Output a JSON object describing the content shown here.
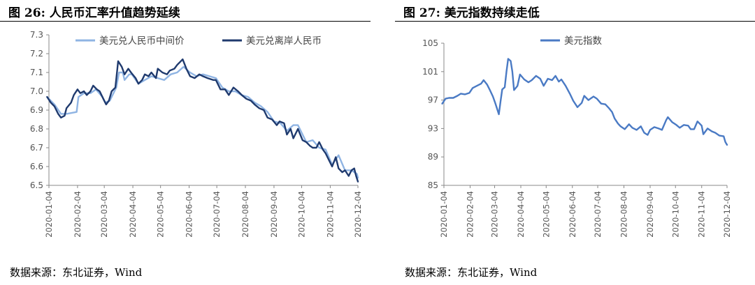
{
  "figures": [
    {
      "title": "图 26: 人民币汇率升值趋势延续",
      "source": "数据来源：东北证券，Wind"
    },
    {
      "title": "图 27: 美元指数持续走低",
      "source": "数据来源：东北证券，Wind"
    }
  ],
  "chart_data": [
    {
      "type": "line",
      "xlabel": "",
      "ylabel": "",
      "ylim": [
        6.5,
        7.3
      ],
      "yticks": [
        6.5,
        6.6,
        6.7,
        6.8,
        6.9,
        7.0,
        7.1,
        7.2,
        7.3
      ],
      "xlim": [
        "2020-01-04",
        "2020-12-04"
      ],
      "xticks": [
        "2020-01-04",
        "2020-02-04",
        "2020-03-04",
        "2020-04-04",
        "2020-05-04",
        "2020-06-04",
        "2020-07-04",
        "2020-08-04",
        "2020-09-04",
        "2020-10-04",
        "2020-11-04",
        "2020-12-04"
      ],
      "grid": false,
      "legend": "top",
      "series": [
        {
          "name": "美元兑人民币中间价",
          "color": "#8fb4e3",
          "points": [
            [
              "2020-01-02",
              6.97
            ],
            [
              "2020-01-10",
              6.93
            ],
            [
              "2020-01-17",
              6.88
            ],
            [
              "2020-01-23",
              6.88
            ],
            [
              "2020-02-03",
              6.89
            ],
            [
              "2020-02-05",
              6.97
            ],
            [
              "2020-02-11",
              6.99
            ],
            [
              "2020-02-18",
              6.99
            ],
            [
              "2020-02-24",
              7.01
            ],
            [
              "2020-03-02",
              6.97
            ],
            [
              "2020-03-05",
              6.94
            ],
            [
              "2020-03-10",
              6.95
            ],
            [
              "2020-03-17",
              7.02
            ],
            [
              "2020-03-20",
              7.1
            ],
            [
              "2020-03-24",
              7.1
            ],
            [
              "2020-03-26",
              7.06
            ],
            [
              "2020-03-31",
              7.09
            ],
            [
              "2020-04-03",
              7.09
            ],
            [
              "2020-04-10",
              7.04
            ],
            [
              "2020-04-17",
              7.06
            ],
            [
              "2020-04-24",
              7.08
            ],
            [
              "2020-05-01",
              7.07
            ],
            [
              "2020-05-08",
              7.06
            ],
            [
              "2020-05-15",
              7.09
            ],
            [
              "2020-05-22",
              7.1
            ],
            [
              "2020-05-29",
              7.13
            ],
            [
              "2020-06-05",
              7.1
            ],
            [
              "2020-06-12",
              7.08
            ],
            [
              "2020-06-19",
              7.09
            ],
            [
              "2020-06-26",
              7.08
            ],
            [
              "2020-07-03",
              7.07
            ],
            [
              "2020-07-10",
              7.02
            ],
            [
              "2020-07-17",
              7.0
            ],
            [
              "2020-07-24",
              7.0
            ],
            [
              "2020-07-31",
              6.98
            ],
            [
              "2020-08-07",
              6.97
            ],
            [
              "2020-08-14",
              6.94
            ],
            [
              "2020-08-21",
              6.92
            ],
            [
              "2020-08-28",
              6.89
            ],
            [
              "2020-09-04",
              6.84
            ],
            [
              "2020-09-11",
              6.83
            ],
            [
              "2020-09-18",
              6.79
            ],
            [
              "2020-09-25",
              6.82
            ],
            [
              "2020-09-30",
              6.82
            ],
            [
              "2020-10-09",
              6.73
            ],
            [
              "2020-10-16",
              6.74
            ],
            [
              "2020-10-23",
              6.7
            ],
            [
              "2020-10-30",
              6.69
            ],
            [
              "2020-11-06",
              6.61
            ],
            [
              "2020-11-13",
              6.66
            ],
            [
              "2020-11-20",
              6.58
            ],
            [
              "2020-11-27",
              6.58
            ],
            [
              "2020-12-03",
              6.56
            ],
            [
              "2020-12-04",
              6.54
            ]
          ]
        },
        {
          "name": "美元兑离岸人民币",
          "color": "#1f3a6e",
          "points": [
            [
              "2020-01-02",
              6.97
            ],
            [
              "2020-01-06",
              6.94
            ],
            [
              "2020-01-10",
              6.92
            ],
            [
              "2020-01-14",
              6.88
            ],
            [
              "2020-01-17",
              6.86
            ],
            [
              "2020-01-21",
              6.87
            ],
            [
              "2020-01-23",
              6.91
            ],
            [
              "2020-01-28",
              6.94
            ],
            [
              "2020-01-31",
              6.98
            ],
            [
              "2020-02-04",
              7.01
            ],
            [
              "2020-02-07",
              6.99
            ],
            [
              "2020-02-11",
              7.0
            ],
            [
              "2020-02-14",
              6.98
            ],
            [
              "2020-02-18",
              7.0
            ],
            [
              "2020-02-21",
              7.03
            ],
            [
              "2020-02-25",
              7.01
            ],
            [
              "2020-02-28",
              7.0
            ],
            [
              "2020-03-03",
              6.96
            ],
            [
              "2020-03-06",
              6.93
            ],
            [
              "2020-03-09",
              6.95
            ],
            [
              "2020-03-12",
              7.0
            ],
            [
              "2020-03-16",
              7.02
            ],
            [
              "2020-03-18",
              7.11
            ],
            [
              "2020-03-19",
              7.16
            ],
            [
              "2020-03-23",
              7.13
            ],
            [
              "2020-03-26",
              7.09
            ],
            [
              "2020-03-30",
              7.12
            ],
            [
              "2020-04-02",
              7.1
            ],
            [
              "2020-04-07",
              7.07
            ],
            [
              "2020-04-10",
              7.04
            ],
            [
              "2020-04-14",
              7.06
            ],
            [
              "2020-04-17",
              7.09
            ],
            [
              "2020-04-21",
              7.08
            ],
            [
              "2020-04-24",
              7.1
            ],
            [
              "2020-04-29",
              7.07
            ],
            [
              "2020-05-01",
              7.12
            ],
            [
              "2020-05-06",
              7.1
            ],
            [
              "2020-05-11",
              7.09
            ],
            [
              "2020-05-14",
              7.11
            ],
            [
              "2020-05-19",
              7.12
            ],
            [
              "2020-05-22",
              7.14
            ],
            [
              "2020-05-26",
              7.16
            ],
            [
              "2020-05-28",
              7.17
            ],
            [
              "2020-06-01",
              7.12
            ],
            [
              "2020-06-05",
              7.08
            ],
            [
              "2020-06-10",
              7.07
            ],
            [
              "2020-06-15",
              7.09
            ],
            [
              "2020-06-19",
              7.08
            ],
            [
              "2020-06-24",
              7.07
            ],
            [
              "2020-06-30",
              7.06
            ],
            [
              "2020-07-03",
              7.06
            ],
            [
              "2020-07-08",
              7.01
            ],
            [
              "2020-07-13",
              7.01
            ],
            [
              "2020-07-17",
              6.98
            ],
            [
              "2020-07-22",
              7.02
            ],
            [
              "2020-07-27",
              7.0
            ],
            [
              "2020-07-31",
              6.98
            ],
            [
              "2020-08-05",
              6.96
            ],
            [
              "2020-08-10",
              6.95
            ],
            [
              "2020-08-14",
              6.93
            ],
            [
              "2020-08-19",
              6.91
            ],
            [
              "2020-08-24",
              6.9
            ],
            [
              "2020-08-28",
              6.86
            ],
            [
              "2020-09-02",
              6.85
            ],
            [
              "2020-09-07",
              6.82
            ],
            [
              "2020-09-10",
              6.84
            ],
            [
              "2020-09-15",
              6.83
            ],
            [
              "2020-09-18",
              6.77
            ],
            [
              "2020-09-22",
              6.8
            ],
            [
              "2020-09-25",
              6.75
            ],
            [
              "2020-09-30",
              6.8
            ],
            [
              "2020-10-05",
              6.74
            ],
            [
              "2020-10-09",
              6.73
            ],
            [
              "2020-10-13",
              6.71
            ],
            [
              "2020-10-16",
              6.7
            ],
            [
              "2020-10-20",
              6.7
            ],
            [
              "2020-10-23",
              6.73
            ],
            [
              "2020-10-27",
              6.69
            ],
            [
              "2020-10-30",
              6.67
            ],
            [
              "2020-11-03",
              6.63
            ],
            [
              "2020-11-06",
              6.6
            ],
            [
              "2020-11-10",
              6.65
            ],
            [
              "2020-11-13",
              6.59
            ],
            [
              "2020-11-17",
              6.57
            ],
            [
              "2020-11-20",
              6.58
            ],
            [
              "2020-11-24",
              6.55
            ],
            [
              "2020-11-27",
              6.58
            ],
            [
              "2020-11-30",
              6.59
            ],
            [
              "2020-12-02",
              6.55
            ],
            [
              "2020-12-04",
              6.52
            ]
          ]
        }
      ]
    },
    {
      "type": "line",
      "xlabel": "",
      "ylabel": "",
      "ylim": [
        85,
        105
      ],
      "yticks": [
        85,
        89,
        93,
        97,
        101,
        105
      ],
      "xlim": [
        "2020-01-04",
        "2020-12-04"
      ],
      "xticks": [
        "2020-01-04",
        "2020-02-04",
        "2020-03-04",
        "2020-04-04",
        "2020-05-04",
        "2020-06-04",
        "2020-07-04",
        "2020-08-04",
        "2020-09-04",
        "2020-10-04",
        "2020-11-04",
        "2020-12-04"
      ],
      "grid": false,
      "legend": "top",
      "series": [
        {
          "name": "美元指数",
          "color": "#4a7ac4",
          "points": [
            [
              "2020-01-02",
              96.5
            ],
            [
              "2020-01-06",
              97.2
            ],
            [
              "2020-01-10",
              97.3
            ],
            [
              "2020-01-15",
              97.3
            ],
            [
              "2020-01-20",
              97.6
            ],
            [
              "2020-01-24",
              97.9
            ],
            [
              "2020-01-29",
              97.8
            ],
            [
              "2020-02-03",
              98.0
            ],
            [
              "2020-02-07",
              98.7
            ],
            [
              "2020-02-12",
              99.0
            ],
            [
              "2020-02-17",
              99.3
            ],
            [
              "2020-02-20",
              99.8
            ],
            [
              "2020-02-24",
              99.2
            ],
            [
              "2020-02-27",
              98.5
            ],
            [
              "2020-03-02",
              97.5
            ],
            [
              "2020-03-05",
              96.5
            ],
            [
              "2020-03-09",
              95.0
            ],
            [
              "2020-03-11",
              96.8
            ],
            [
              "2020-03-13",
              98.5
            ],
            [
              "2020-03-16",
              98.8
            ],
            [
              "2020-03-18",
              101.0
            ],
            [
              "2020-03-20",
              102.8
            ],
            [
              "2020-03-23",
              102.5
            ],
            [
              "2020-03-25",
              101.0
            ],
            [
              "2020-03-27",
              98.4
            ],
            [
              "2020-03-31",
              99.0
            ],
            [
              "2020-04-03",
              100.6
            ],
            [
              "2020-04-08",
              99.9
            ],
            [
              "2020-04-13",
              99.5
            ],
            [
              "2020-04-17",
              99.8
            ],
            [
              "2020-04-22",
              100.4
            ],
            [
              "2020-04-27",
              100.0
            ],
            [
              "2020-05-01",
              99.0
            ],
            [
              "2020-05-06",
              100.0
            ],
            [
              "2020-05-11",
              99.8
            ],
            [
              "2020-05-15",
              100.4
            ],
            [
              "2020-05-19",
              99.6
            ],
            [
              "2020-05-22",
              99.9
            ],
            [
              "2020-05-27",
              99.0
            ],
            [
              "2020-06-01",
              97.9
            ],
            [
              "2020-06-05",
              96.9
            ],
            [
              "2020-06-10",
              96.0
            ],
            [
              "2020-06-15",
              96.6
            ],
            [
              "2020-06-18",
              97.6
            ],
            [
              "2020-06-23",
              97.0
            ],
            [
              "2020-06-29",
              97.5
            ],
            [
              "2020-07-03",
              97.2
            ],
            [
              "2020-07-08",
              96.5
            ],
            [
              "2020-07-13",
              96.4
            ],
            [
              "2020-07-17",
              95.9
            ],
            [
              "2020-07-21",
              95.3
            ],
            [
              "2020-07-24",
              94.4
            ],
            [
              "2020-07-28",
              93.7
            ],
            [
              "2020-07-31",
              93.3
            ],
            [
              "2020-08-05",
              92.9
            ],
            [
              "2020-08-10",
              93.6
            ],
            [
              "2020-08-14",
              93.1
            ],
            [
              "2020-08-19",
              92.8
            ],
            [
              "2020-08-24",
              93.3
            ],
            [
              "2020-08-28",
              92.4
            ],
            [
              "2020-09-01",
              92.1
            ],
            [
              "2020-09-04",
              92.8
            ],
            [
              "2020-09-09",
              93.2
            ],
            [
              "2020-09-14",
              93.0
            ],
            [
              "2020-09-18",
              92.8
            ],
            [
              "2020-09-23",
              94.2
            ],
            [
              "2020-09-25",
              94.6
            ],
            [
              "2020-09-30",
              93.9
            ],
            [
              "2020-10-05",
              93.5
            ],
            [
              "2020-10-09",
              93.1
            ],
            [
              "2020-10-14",
              93.5
            ],
            [
              "2020-10-19",
              93.4
            ],
            [
              "2020-10-22",
              92.9
            ],
            [
              "2020-10-26",
              92.9
            ],
            [
              "2020-10-30",
              94.0
            ],
            [
              "2020-11-04",
              93.4
            ],
            [
              "2020-11-06",
              92.2
            ],
            [
              "2020-11-11",
              93.0
            ],
            [
              "2020-11-16",
              92.6
            ],
            [
              "2020-11-20",
              92.4
            ],
            [
              "2020-11-25",
              92.0
            ],
            [
              "2020-11-30",
              91.9
            ],
            [
              "2020-12-02",
              91.1
            ],
            [
              "2020-12-04",
              90.7
            ]
          ]
        }
      ]
    }
  ]
}
